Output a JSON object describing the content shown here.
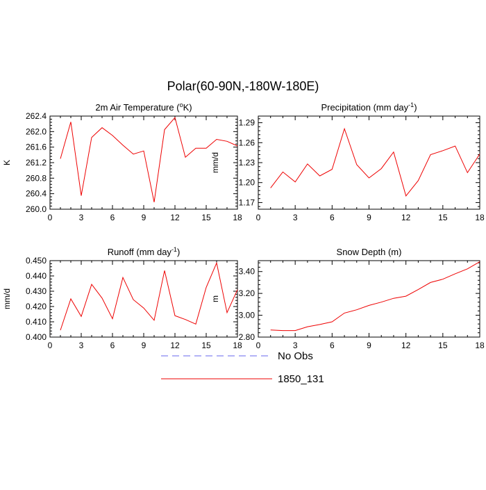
{
  "title": "Polar(60-90N,-180W-180E)",
  "legend": [
    {
      "label": "No Obs",
      "color": "#6666ee",
      "style": "dashed"
    },
    {
      "label": "1850_131",
      "color": "#ee0000",
      "style": "solid"
    }
  ],
  "chart_data": [
    {
      "type": "line",
      "title_main": "2m Air Temperature (",
      "title_sup": "o",
      "title_tail": "K)",
      "ylabel": "K",
      "xlim": [
        0,
        18
      ],
      "ylim": [
        260.0,
        262.4
      ],
      "xticks": [
        0,
        3,
        6,
        9,
        12,
        15,
        18
      ],
      "yticks": [
        260.0,
        260.4,
        260.8,
        261.2,
        261.6,
        262.0,
        262.4
      ],
      "ytick_labels": [
        "260.0",
        "260.4",
        "260.8",
        "261.2",
        "261.6",
        "262.0",
        "262.4"
      ],
      "series": [
        {
          "name": "1850_131",
          "x": [
            1,
            2,
            3,
            4,
            5,
            6,
            7,
            8,
            9,
            10,
            11,
            12,
            13,
            14,
            15,
            16,
            17,
            18
          ],
          "values": [
            261.3,
            262.25,
            260.35,
            261.85,
            262.1,
            261.9,
            261.65,
            261.42,
            261.5,
            260.18,
            262.05,
            262.36,
            261.34,
            261.57,
            261.57,
            261.8,
            261.75,
            261.63
          ]
        }
      ]
    },
    {
      "type": "line",
      "title_main": "Precipitation (mm day",
      "title_sup": "-1",
      "title_tail": ")",
      "ylabel": "mm/d",
      "xlim": [
        0,
        18
      ],
      "ylim": [
        1.16,
        1.3
      ],
      "xticks": [
        0,
        3,
        6,
        9,
        12,
        15,
        18
      ],
      "yticks": [
        1.17,
        1.2,
        1.23,
        1.26,
        1.29
      ],
      "ytick_labels": [
        "1.17",
        "1.20",
        "1.23",
        "1.26",
        "1.29"
      ],
      "series": [
        {
          "name": "1850_131",
          "x": [
            1,
            2,
            3,
            4,
            5,
            6,
            7,
            8,
            9,
            10,
            11,
            12,
            13,
            14,
            15,
            16,
            17,
            18
          ],
          "values": [
            1.192,
            1.216,
            1.201,
            1.228,
            1.21,
            1.22,
            1.281,
            1.227,
            1.207,
            1.221,
            1.246,
            1.18,
            1.203,
            1.242,
            1.248,
            1.255,
            1.215,
            1.243
          ]
        }
      ]
    },
    {
      "type": "line",
      "title_main": "Runoff (mm day",
      "title_sup": "-1",
      "title_tail": ")",
      "ylabel": "mm/d",
      "xlim": [
        0,
        18
      ],
      "ylim": [
        0.4,
        0.45
      ],
      "xticks": [
        0,
        3,
        6,
        9,
        12,
        15,
        18
      ],
      "yticks": [
        0.4,
        0.41,
        0.42,
        0.43,
        0.44,
        0.45
      ],
      "ytick_labels": [
        "0.400",
        "0.410",
        "0.420",
        "0.430",
        "0.440",
        "0.450"
      ],
      "series": [
        {
          "name": "1850_131",
          "x": [
            1,
            2,
            3,
            4,
            5,
            6,
            7,
            8,
            9,
            10,
            11,
            12,
            13,
            14,
            15,
            16,
            17,
            18
          ],
          "values": [
            0.4045,
            0.425,
            0.4135,
            0.4345,
            0.4255,
            0.412,
            0.439,
            0.4245,
            0.419,
            0.411,
            0.4435,
            0.414,
            0.4115,
            0.4085,
            0.4325,
            0.4485,
            0.416,
            0.431
          ]
        }
      ]
    },
    {
      "type": "line",
      "title_main": "Snow Depth (m)",
      "title_sup": "",
      "title_tail": "",
      "ylabel": "m",
      "xlim": [
        0,
        18
      ],
      "ylim": [
        2.8,
        3.5
      ],
      "xticks": [
        0,
        3,
        6,
        9,
        12,
        15,
        18
      ],
      "yticks": [
        2.8,
        3.0,
        3.2,
        3.4
      ],
      "ytick_labels": [
        "2.80",
        "3.00",
        "3.20",
        "3.40"
      ],
      "series": [
        {
          "name": "1850_131",
          "x": [
            1,
            2,
            3,
            4,
            5,
            6,
            7,
            8,
            9,
            10,
            11,
            12,
            13,
            14,
            15,
            16,
            17,
            18
          ],
          "values": [
            2.865,
            2.86,
            2.86,
            2.895,
            2.915,
            2.94,
            3.02,
            3.05,
            3.09,
            3.12,
            3.155,
            3.175,
            3.235,
            3.3,
            3.33,
            3.38,
            3.425,
            3.49
          ]
        }
      ]
    }
  ]
}
